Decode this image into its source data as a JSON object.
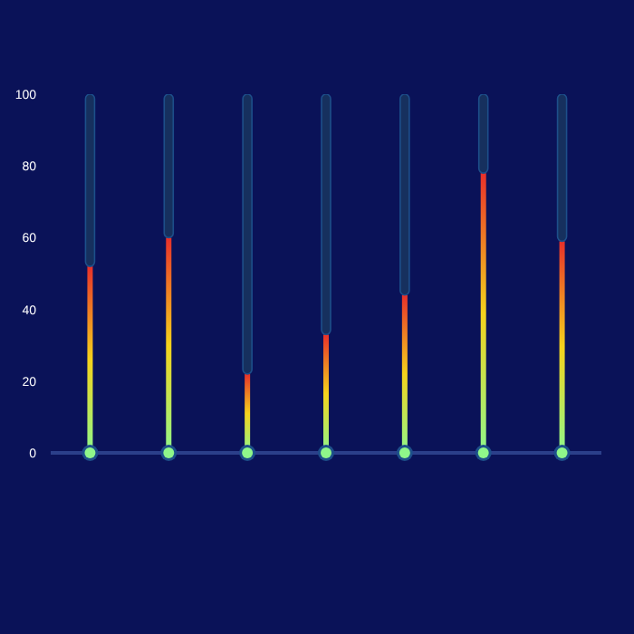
{
  "chart_data": {
    "type": "bar",
    "categories": [
      null,
      null,
      null,
      null,
      null,
      null,
      null
    ],
    "series": [
      {
        "color": "#e8302a",
        "values": [
          52,
          60,
          22,
          33,
          44,
          78,
          59
        ]
      },
      {
        "color": "#16305e",
        "values": [
          48,
          40,
          78,
          67,
          56,
          22,
          41
        ]
      }
    ],
    "stacked": true,
    "grid": false,
    "ylim": [
      0,
      100
    ],
    "yticks": [
      0,
      20,
      40,
      60,
      80,
      100
    ]
  }
}
